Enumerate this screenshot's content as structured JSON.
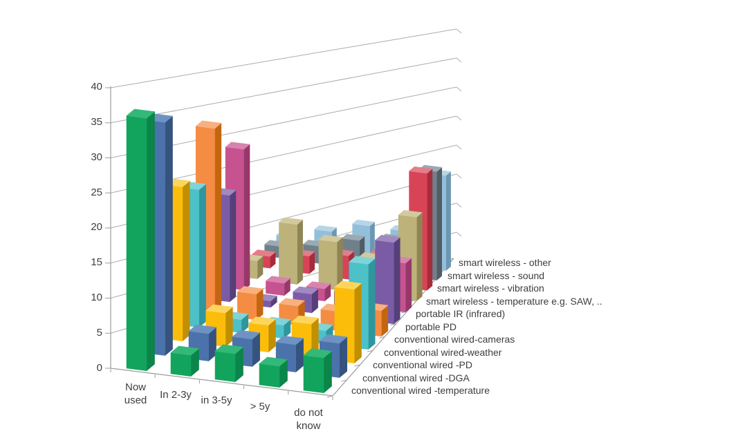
{
  "chart_data": {
    "type": "bar",
    "projection": "3d-column",
    "title": "",
    "xlabel": "",
    "ylabel": "",
    "ylim": [
      0,
      40
    ],
    "y_step": 5,
    "grid": true,
    "legend_position": "depth-axis-right",
    "y_ticks": [
      "0",
      "5",
      "10",
      "15",
      "20",
      "25",
      "30",
      "35",
      "40"
    ],
    "categories": [
      "Now used",
      "In 2-3y",
      "in 3-5y",
      "> 5y",
      "do not know"
    ],
    "series": [
      {
        "name": "conventional wired -temperature",
        "values": [
          36,
          3,
          4,
          3,
          5
        ],
        "colors": {
          "front": "#12A45C",
          "top": "#34B878",
          "side": "#0B8549"
        }
      },
      {
        "name": "conventional wired -DGA",
        "values": [
          34,
          4,
          4,
          4,
          5
        ],
        "colors": {
          "front": "#4B72AB",
          "top": "#6E93C2",
          "side": "#35537E"
        }
      },
      {
        "name": "conventional wired -PD",
        "values": [
          23,
          5,
          4,
          5,
          11
        ],
        "colors": {
          "front": "#FCBD0A",
          "top": "#FDD55E",
          "side": "#C18F00"
        }
      },
      {
        "name": "conventional wired-weather",
        "values": [
          21,
          2,
          2,
          2,
          13
        ],
        "colors": {
          "front": "#4CC1C8",
          "top": "#7FD4D8",
          "side": "#2F969D"
        }
      },
      {
        "name": "conventional wired-cameras",
        "values": [
          29,
          4,
          3,
          3,
          4
        ],
        "colors": {
          "front": "#F48C44",
          "top": "#F8B07F",
          "side": "#C4660F"
        }
      },
      {
        "name": "portable PD",
        "values": [
          17,
          1,
          3,
          4,
          13
        ],
        "colors": {
          "front": "#7A5CA6",
          "top": "#9F89C0",
          "side": "#573F79"
        }
      },
      {
        "name": "portable IR (infrared)",
        "values": [
          23,
          2,
          2,
          2,
          8
        ],
        "colors": {
          "front": "#C65290",
          "top": "#D883AE",
          "side": "#97386A"
        }
      },
      {
        "name": "smart wireless - temperature e.g. SAW, ..",
        "values": [
          3,
          10,
          8,
          6,
          14
        ],
        "colors": {
          "front": "#BDB27A",
          "top": "#D2CA9E",
          "side": "#8E8552"
        }
      },
      {
        "name": "smart wireless - vibration",
        "values": [
          2,
          3,
          4,
          5,
          20
        ],
        "colors": {
          "front": "#D74456",
          "top": "#E27E8A",
          "side": "#A62C3C"
        }
      },
      {
        "name": "smart wireless - sound",
        "values": [
          2,
          3,
          5,
          6,
          19
        ],
        "colors": {
          "front": "#70808B",
          "top": "#9BA9B2",
          "side": "#515D66"
        }
      },
      {
        "name": "smart wireless - other",
        "values": [
          2,
          4,
          6,
          6,
          17
        ],
        "colors": {
          "front": "#94BFDA",
          "top": "#B8D5E7",
          "side": "#6C97B2"
        }
      }
    ],
    "style_colors": {
      "grid": "#ABABAB",
      "axis": "#9B9B9B",
      "text": "#3D3D3D",
      "background": "#FFFFFF"
    }
  }
}
